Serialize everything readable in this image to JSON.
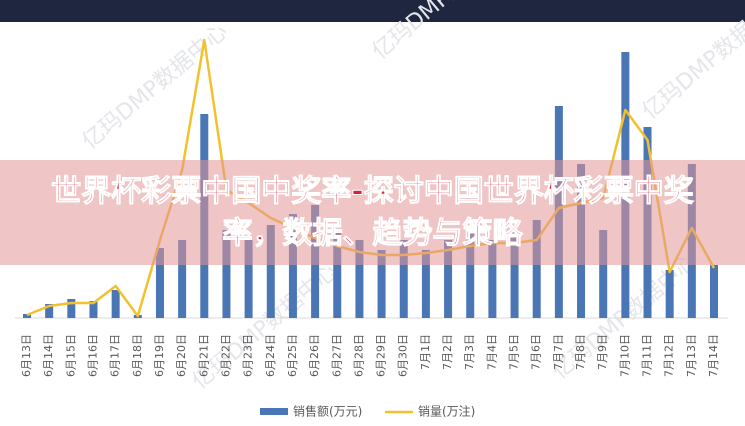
{
  "chart_data": {
    "type": "bar-line",
    "title": "世界杯彩票中国中奖率-探讨中国世界杯彩票中奖率，数据、趋势与策略",
    "watermark": "亿玛DMP数据中心",
    "categories": [
      "6月13日",
      "6月14日",
      "6月15日",
      "6月16日",
      "6月17日",
      "6月18日",
      "6月19日",
      "6月20日",
      "6月21日",
      "6月22日",
      "6月23日",
      "6月24日",
      "6月25日",
      "6月26日",
      "6月27日",
      "6月28日",
      "6月29日",
      "6月30日",
      "7月1日",
      "7月2日",
      "7月3日",
      "7月4日",
      "7月5日",
      "7月6日",
      "7月7日",
      "7月8日",
      "7月9日",
      "7月10日",
      "7月11日",
      "7月12日",
      "7月13日",
      "7月14日"
    ],
    "series": [
      {
        "name": "销售额(万元)",
        "type": "bar",
        "color": "#4a76b5",
        "values": [
          4,
          14,
          19,
          17,
          28,
          3,
          70,
          78,
          204,
          88,
          78,
          93,
          104,
          113,
          88,
          78,
          68,
          78,
          68,
          78,
          88,
          78,
          88,
          98,
          212,
          154,
          88,
          266,
          191,
          48,
          154,
          53
        ]
      },
      {
        "name": "销量(万注)",
        "type": "line",
        "color": "#f2c12e",
        "values": [
          3,
          12,
          15,
          15,
          32,
          2,
          78,
          148,
          278,
          128,
          115,
          100,
          90,
          80,
          72,
          66,
          63,
          63,
          65,
          68,
          72,
          75,
          75,
          78,
          110,
          115,
          120,
          208,
          178,
          46,
          90,
          50
        ]
      }
    ]
  }
}
